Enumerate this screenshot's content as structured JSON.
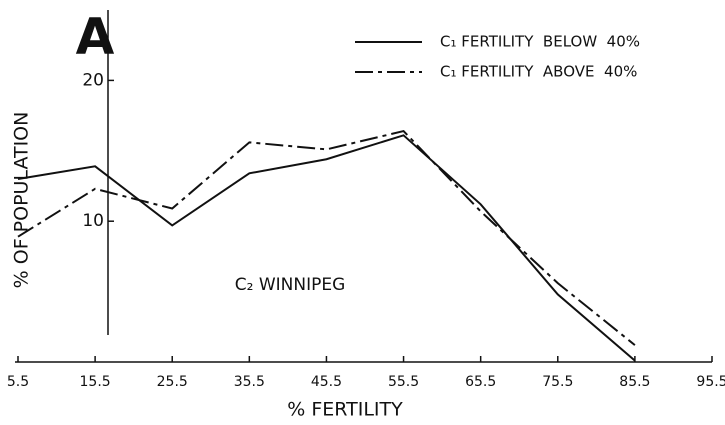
{
  "chart_data": {
    "type": "line",
    "panel_label": "A",
    "annotation": "C₂ WINNIPEG",
    "x_label": "% FERTILITY",
    "y_label": "% OF POPULATION",
    "x": [
      5.5,
      15.5,
      25.5,
      35.5,
      45.5,
      55.5,
      65.5,
      75.5,
      85.5
    ],
    "series": [
      {
        "name": "C₁ FERTILITY  BELOW  40%",
        "color": "#111111",
        "dash": "solid",
        "values": [
          13.0,
          13.9,
          9.7,
          13.4,
          14.4,
          16.1,
          11.2,
          4.8,
          0.1
        ]
      },
      {
        "name": "C₁ FERTILITY  ABOVE  40%",
        "color": "#111111",
        "dash": "dashdot",
        "values": [
          8.9,
          12.3,
          10.9,
          15.6,
          15.1,
          16.4,
          10.7,
          5.6,
          1.2
        ]
      }
    ],
    "xlim": [
      5.5,
      95.5
    ],
    "xticks": [
      5.5,
      15.5,
      25.5,
      35.5,
      45.5,
      55.5,
      65.5,
      75.5,
      85.5,
      95.5
    ],
    "ylim": [
      0,
      25
    ],
    "yticks": [
      10,
      20
    ],
    "legend": "upper right",
    "grid": false
  }
}
